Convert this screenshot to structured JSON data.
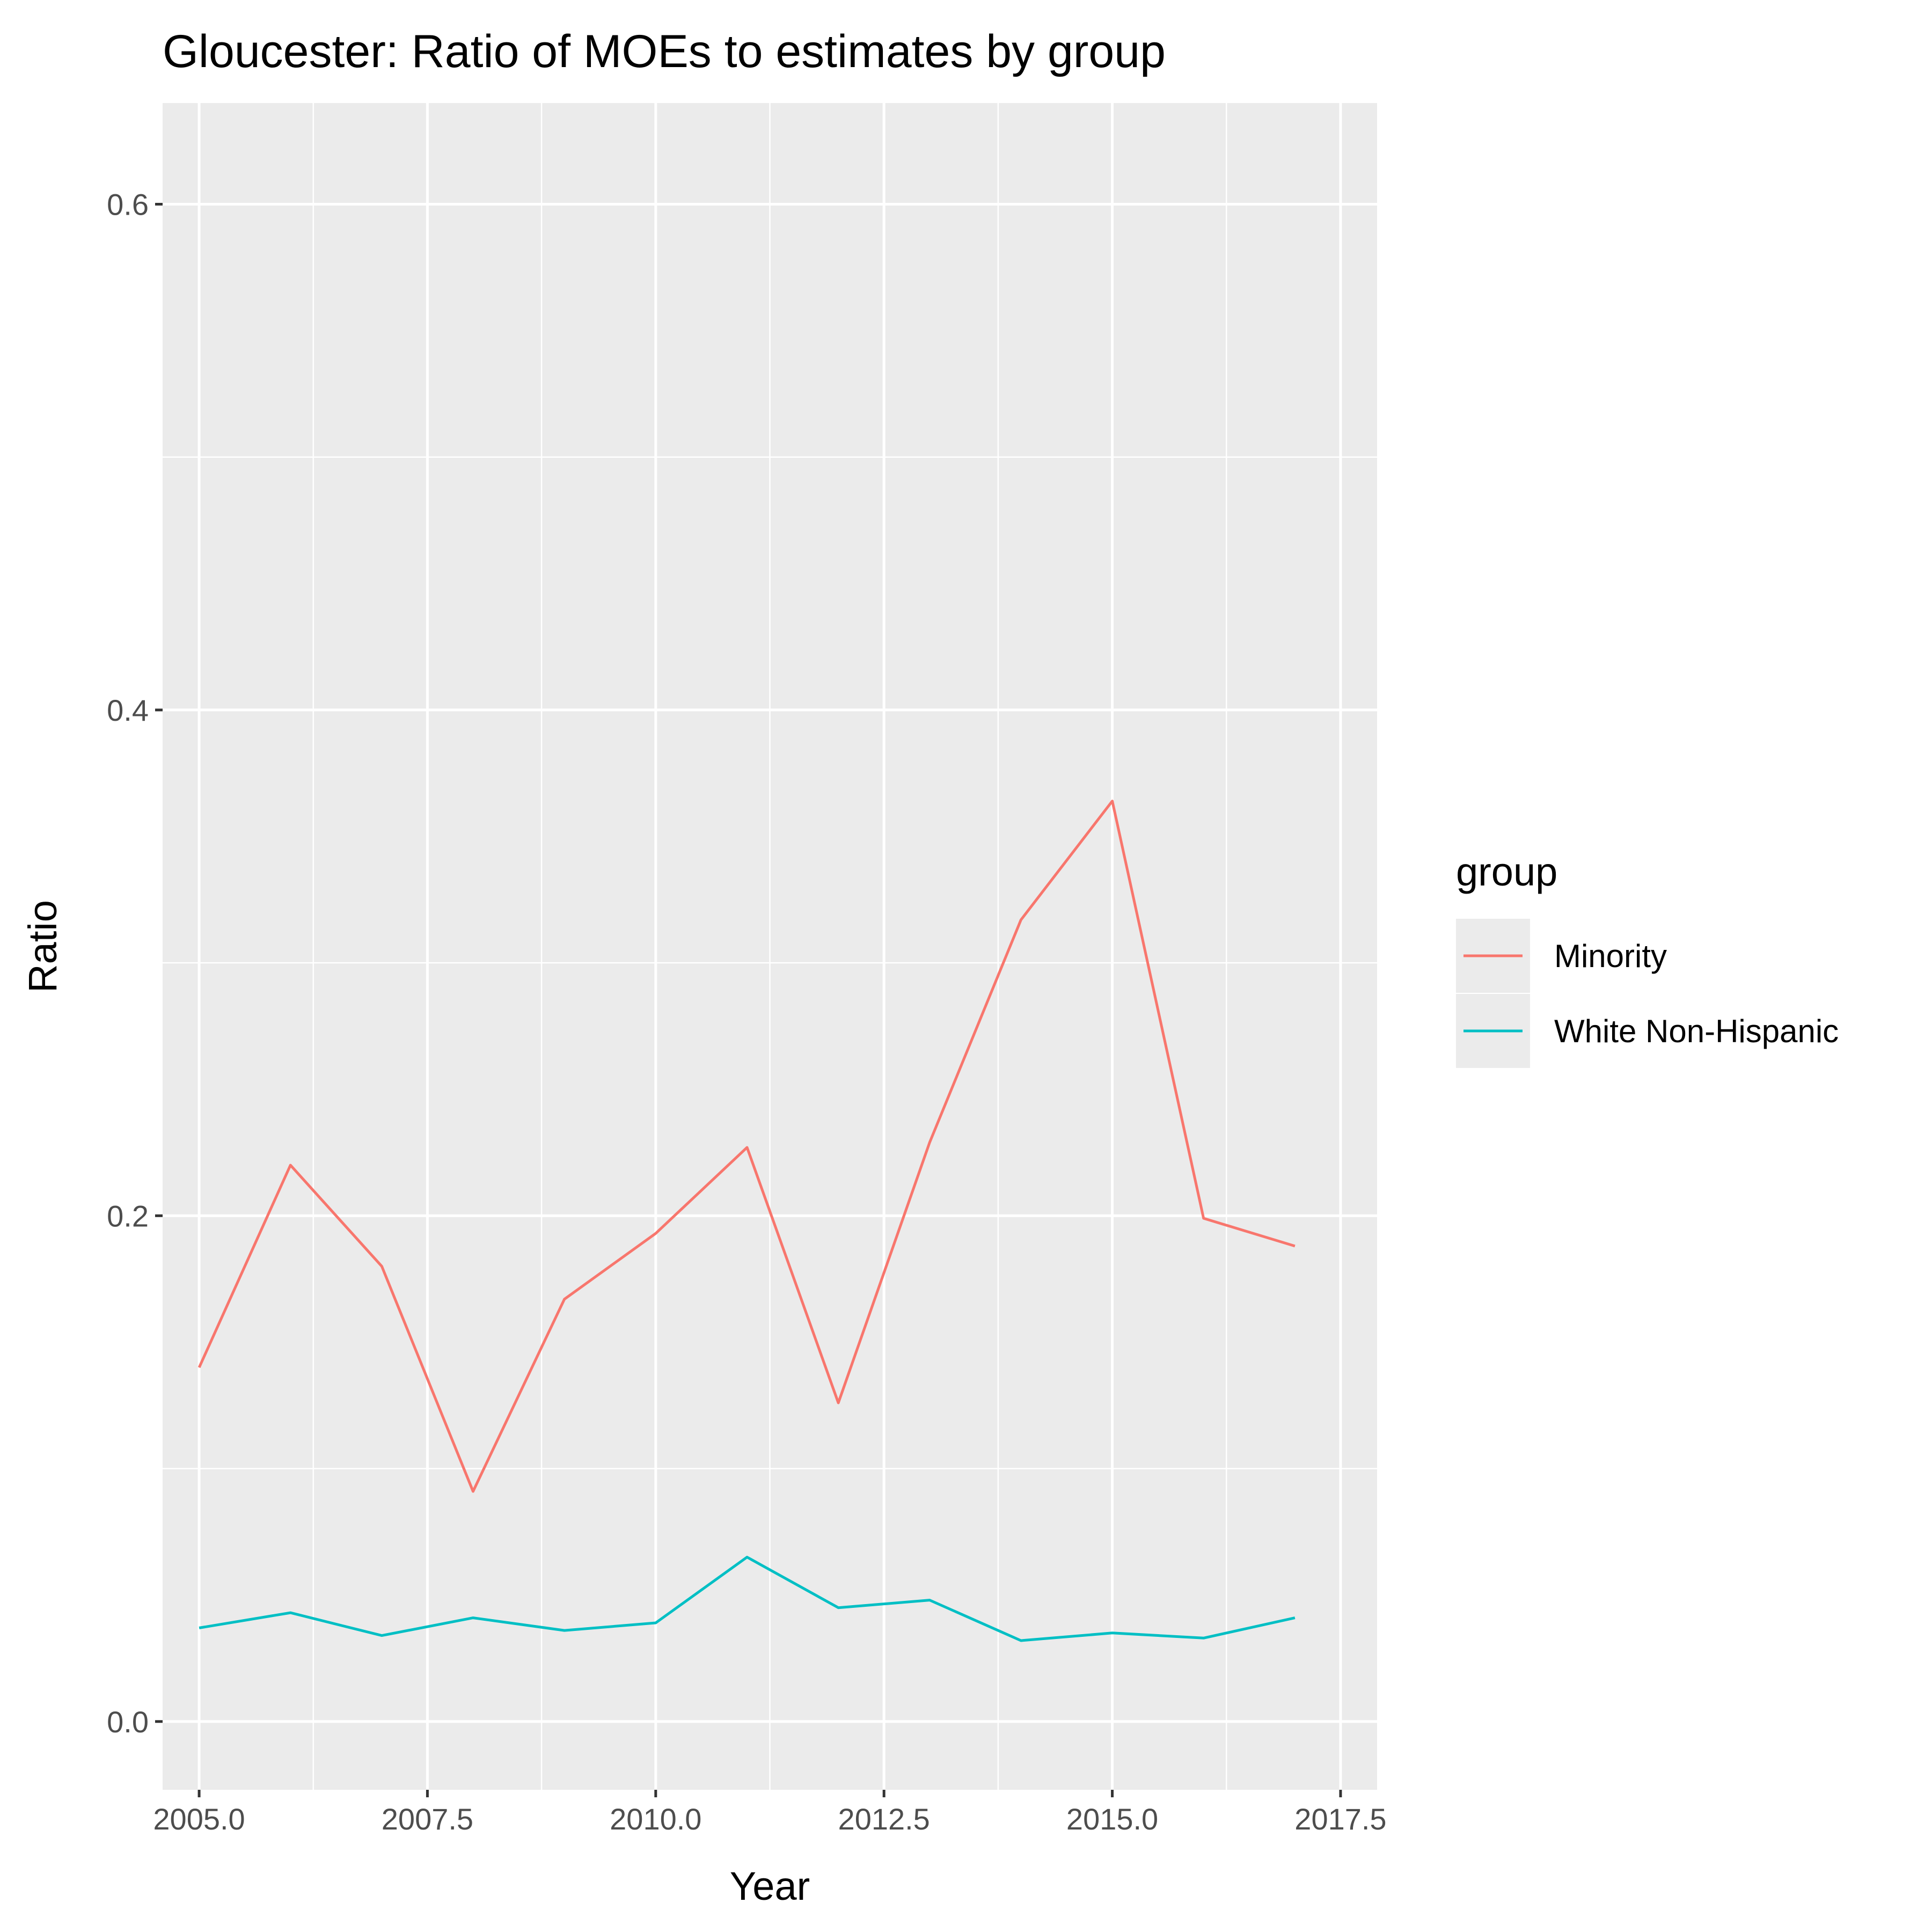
{
  "chart_data": {
    "type": "line",
    "title": "Gloucester: Ratio of MOEs to estimates by group",
    "xlabel": "Year",
    "ylabel": "Ratio",
    "x": [
      2005,
      2006,
      2007,
      2008,
      2009,
      2010,
      2011,
      2012,
      2013,
      2014,
      2015,
      2016,
      2017
    ],
    "xlim": [
      2004.6,
      2017.9
    ],
    "ylim": [
      -0.027,
      0.64
    ],
    "x_ticks": [
      2005.0,
      2007.5,
      2010.0,
      2012.5,
      2015.0,
      2017.5
    ],
    "x_tick_labels": [
      "2005.0",
      "2007.5",
      "2010.0",
      "2012.5",
      "2015.0",
      "2017.5"
    ],
    "y_ticks": [
      0.0,
      0.2,
      0.4,
      0.6
    ],
    "y_tick_labels": [
      "0.0",
      "0.2",
      "0.4",
      "0.6"
    ],
    "grid": true,
    "legend_title": "group",
    "legend_position": "right",
    "series": [
      {
        "name": "Minority",
        "color": "#F8766D",
        "values": [
          0.14,
          0.22,
          0.18,
          0.091,
          0.167,
          0.193,
          0.227,
          0.126,
          0.229,
          0.317,
          0.364,
          0.199,
          0.188
        ]
      },
      {
        "name": "White Non-Hispanic",
        "color": "#00BFC4",
        "values": [
          0.037,
          0.043,
          0.034,
          0.041,
          0.036,
          0.039,
          0.065,
          0.045,
          0.048,
          0.032,
          0.035,
          0.033,
          0.041
        ]
      }
    ]
  }
}
